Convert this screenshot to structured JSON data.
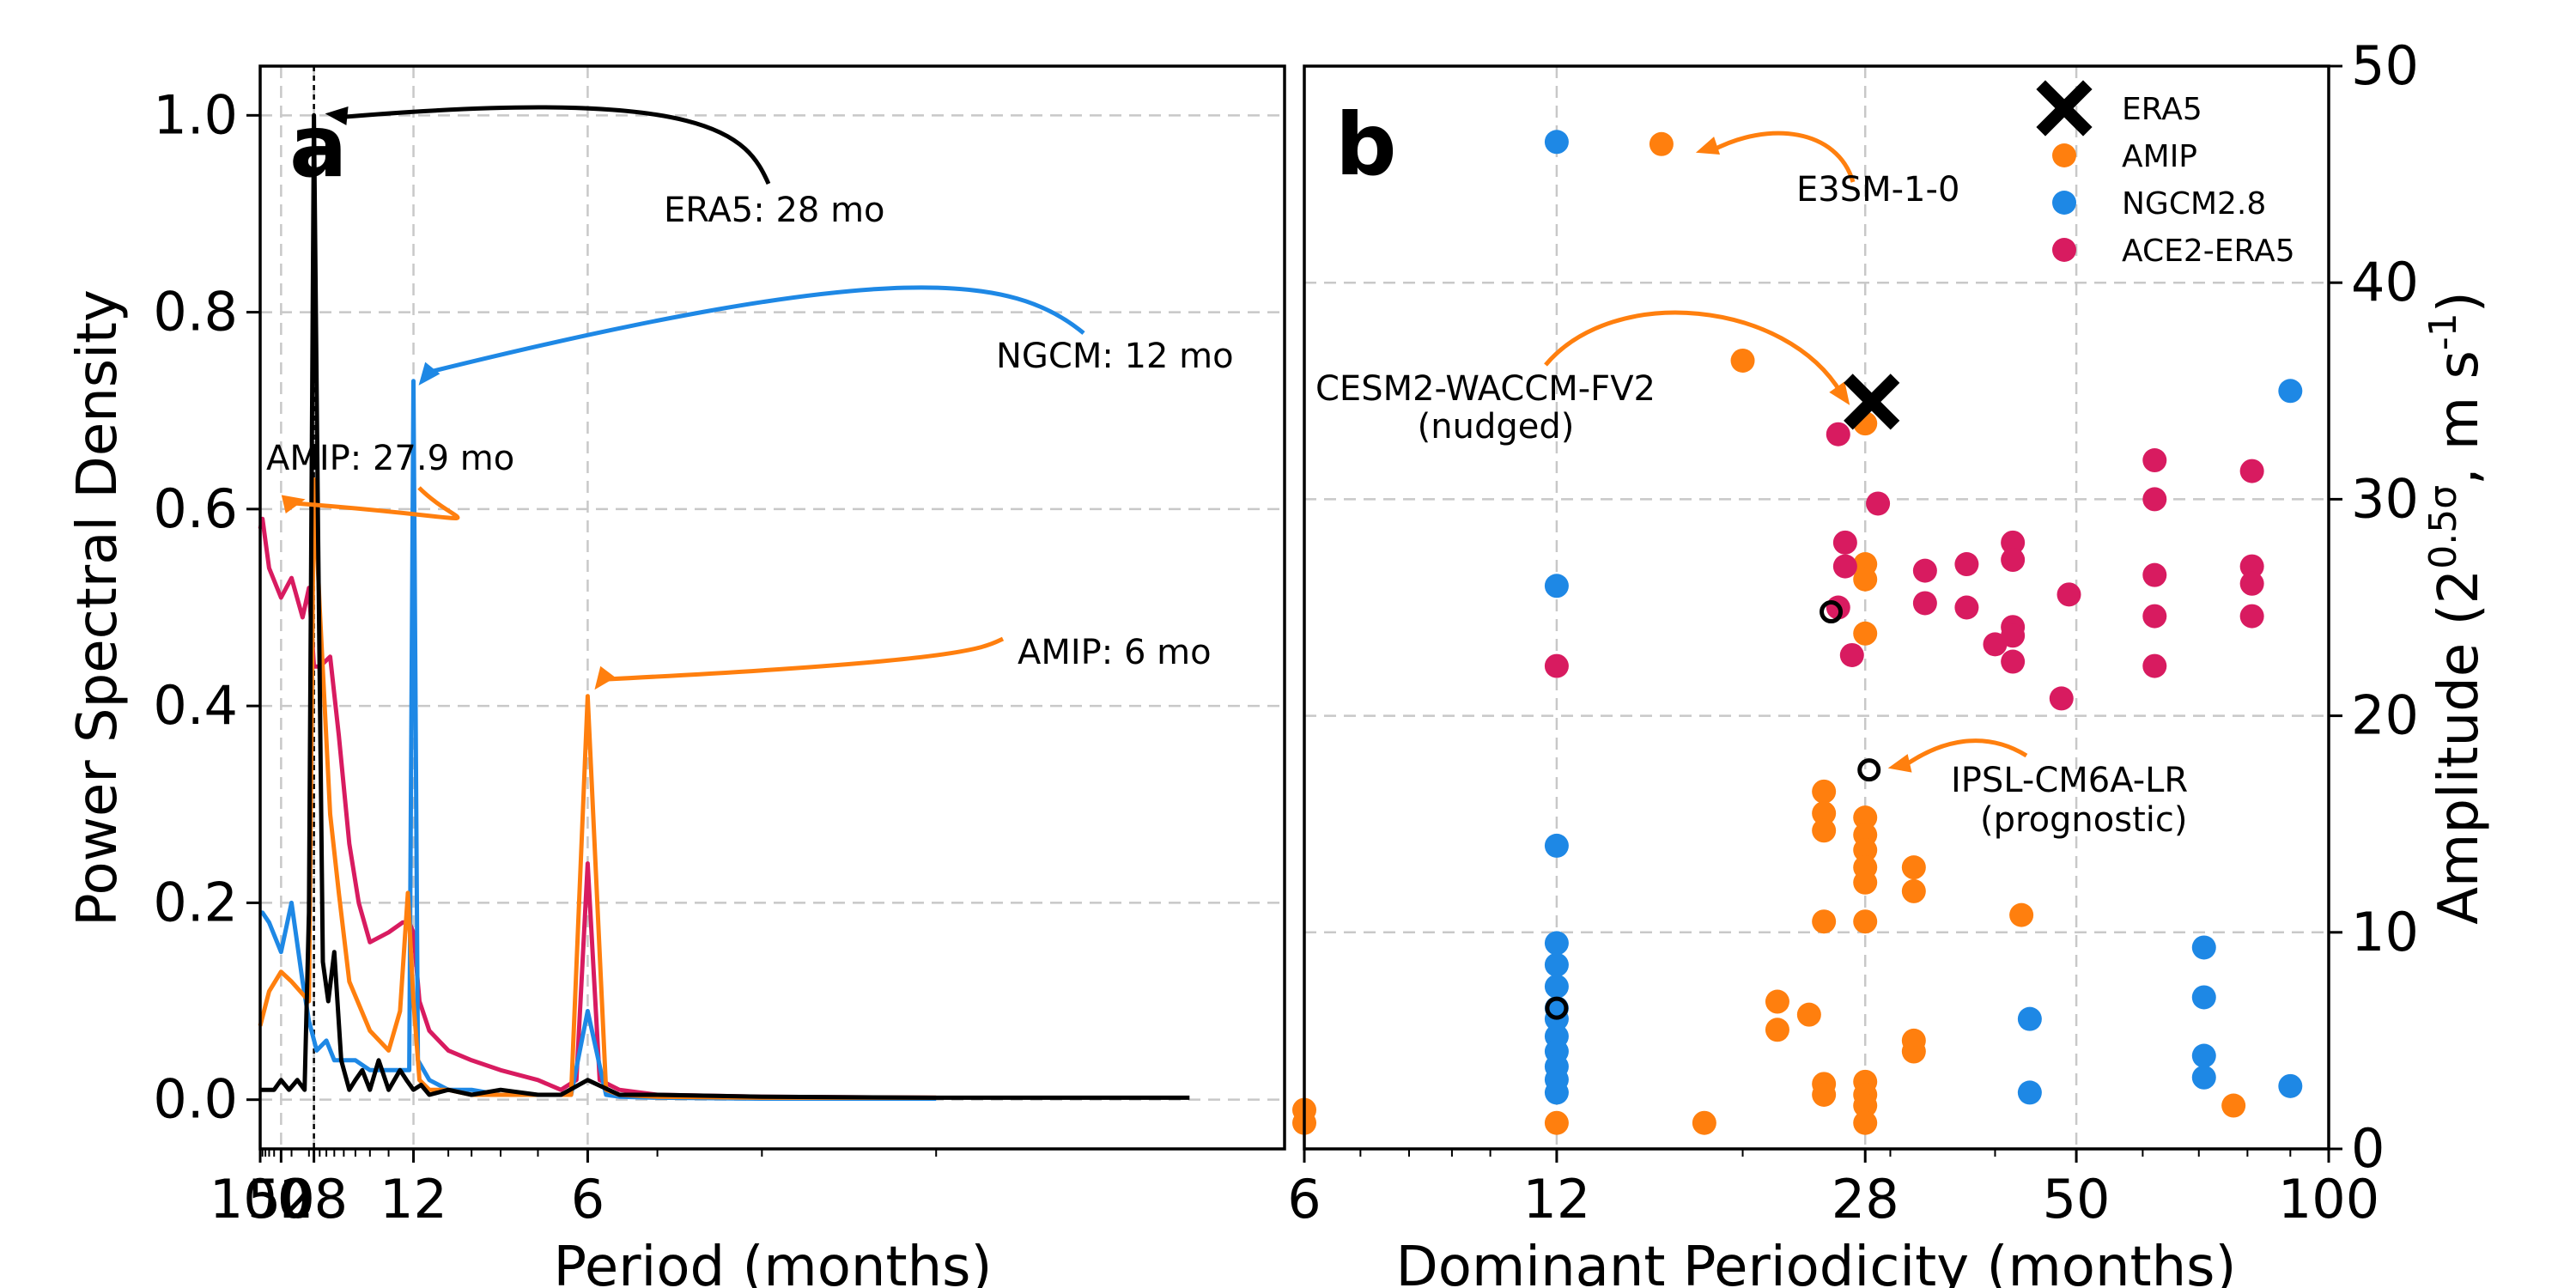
{
  "colors": {
    "era5": "#000000",
    "amip": "#ff7f0e",
    "ngcm": "#1e88e5",
    "ace2": "#d81b60",
    "grid": "#c8c8c8"
  },
  "chart_data": [
    {
      "panel": "a",
      "type": "line",
      "xlabel": "Period (months)",
      "ylabel": "Power Spectral Density",
      "x_scale": "reciprocal (frequency)",
      "xlim": [
        100,
        2
      ],
      "ylim": [
        -0.05,
        1.05
      ],
      "xticks": [
        100,
        50,
        28,
        12,
        6
      ],
      "xtick_labels": [
        "100",
        "50",
        "28",
        "12",
        "6"
      ],
      "yticks": [
        0.0,
        0.2,
        0.4,
        0.6,
        0.8,
        1.0
      ],
      "ytick_labels": [
        "0.0",
        "0.2",
        "0.4",
        "0.6",
        "0.8",
        "1.0"
      ],
      "grid": true,
      "reference_line_x": 28,
      "series": [
        {
          "key": "ace2",
          "x": [
            100,
            90,
            70,
            50,
            40,
            33,
            30,
            28,
            26,
            23,
            21,
            19,
            17.5,
            16,
            14,
            12.8,
            12.3,
            12,
            11.6,
            11,
            10,
            9,
            8,
            7,
            6.5,
            6.2,
            6,
            5.8,
            5.5,
            5,
            4,
            3
          ],
          "y": [
            0.58,
            0.59,
            0.54,
            0.51,
            0.53,
            0.49,
            0.52,
            0.44,
            0.44,
            0.45,
            0.37,
            0.26,
            0.2,
            0.16,
            0.17,
            0.18,
            0.18,
            0.17,
            0.1,
            0.07,
            0.05,
            0.04,
            0.03,
            0.02,
            0.01,
            0.02,
            0.24,
            0.02,
            0.01,
            0.005,
            0.003,
            0.002
          ]
        },
        {
          "key": "ngcm",
          "x": [
            100,
            90,
            70,
            50,
            40,
            33,
            30,
            27,
            24,
            22,
            20,
            18,
            16,
            14,
            12.8,
            12.3,
            12,
            11.7,
            11,
            10,
            9,
            8,
            7,
            6.3,
            6,
            5.7,
            5.5,
            5,
            4,
            3
          ],
          "y": [
            0.19,
            0.19,
            0.18,
            0.15,
            0.2,
            0.12,
            0.08,
            0.05,
            0.06,
            0.04,
            0.04,
            0.04,
            0.03,
            0.03,
            0.03,
            0.03,
            0.73,
            0.04,
            0.02,
            0.01,
            0.01,
            0.005,
            0.005,
            0.005,
            0.09,
            0.005,
            0.003,
            0.002,
            0.001,
            0.001
          ]
        },
        {
          "key": "amip",
          "x": [
            100,
            70,
            50,
            40,
            30,
            28,
            26,
            23,
            21,
            19,
            16,
            14,
            13,
            12.4,
            12,
            11.6,
            11,
            10,
            9,
            8,
            7,
            6.3,
            6,
            5.7,
            5.5,
            5,
            4,
            3
          ],
          "y": [
            0.075,
            0.11,
            0.13,
            0.12,
            0.1,
            0.63,
            0.5,
            0.29,
            0.21,
            0.12,
            0.07,
            0.05,
            0.09,
            0.21,
            0.1,
            0.02,
            0.01,
            0.01,
            0.005,
            0.005,
            0.005,
            0.005,
            0.41,
            0.01,
            0.005,
            0.003,
            0.002,
            0.002
          ]
        },
        {
          "key": "era5",
          "x": [
            100,
            80,
            60,
            50,
            42,
            36,
            32,
            30,
            28,
            26.5,
            25,
            23.5,
            22,
            20.5,
            19,
            18,
            17,
            16,
            15,
            14,
            13,
            12.5,
            12,
            11.5,
            11,
            10,
            9,
            8,
            7,
            6.5,
            6,
            5.5,
            5,
            4,
            3,
            2.2
          ],
          "y": [
            0.01,
            0.01,
            0.01,
            0.02,
            0.01,
            0.02,
            0.01,
            0.19,
            1.0,
            0.57,
            0.14,
            0.1,
            0.15,
            0.04,
            0.01,
            0.02,
            0.03,
            0.01,
            0.04,
            0.01,
            0.03,
            0.02,
            0.01,
            0.015,
            0.005,
            0.01,
            0.005,
            0.01,
            0.005,
            0.005,
            0.02,
            0.005,
            0.005,
            0.003,
            0.002,
            0.002
          ]
        }
      ],
      "annotations": [
        {
          "key": "ann_era5",
          "text": "ERA5: 28 mo",
          "x": 28,
          "y": 1.0,
          "color_key": "era5"
        },
        {
          "key": "ann_ngcm",
          "text": "NGCM: 12 mo",
          "x": 12,
          "y": 0.73,
          "color_key": "ngcm"
        },
        {
          "key": "ann_amip28",
          "text": "AMIP: 27.9 mo",
          "x": 28,
          "y": 0.61,
          "color_key": "amip"
        },
        {
          "key": "ann_amip6",
          "text": "AMIP: 6 mo",
          "x": 6,
          "y": 0.42,
          "color_key": "amip"
        }
      ]
    },
    {
      "panel": "b",
      "type": "scatter",
      "xlabel": "Dominant Periodicity (months)",
      "ylabel": "Amplitude (2^{0.5σ}, m s^{-1})",
      "x_scale": "log",
      "xlim": [
        6,
        100
      ],
      "ylim": [
        0,
        50
      ],
      "y_axis_side": "right",
      "xticks": [
        6,
        12,
        28,
        50,
        100
      ],
      "xtick_labels": [
        "6",
        "12",
        "28",
        "50",
        "100"
      ],
      "yticks": [
        0,
        10,
        20,
        30,
        40,
        50
      ],
      "ytick_labels": [
        "0",
        "10",
        "20",
        "30",
        "40",
        "50"
      ],
      "grid": true,
      "legend_position": "top-right",
      "legend": [
        {
          "key": "era5",
          "label": "ERA5",
          "marker": "x"
        },
        {
          "key": "amip",
          "label": "AMIP",
          "marker": "o"
        },
        {
          "key": "ngcm",
          "label": "NGCM2.8",
          "marker": "o"
        },
        {
          "key": "ace2",
          "label": "ACE2-ERA5",
          "marker": "o"
        }
      ],
      "series": [
        {
          "key": "ngcm",
          "points": [
            [
              12,
              46.5
            ],
            [
              12,
              26
            ],
            [
              12,
              14
            ],
            [
              12,
              9.5
            ],
            [
              12,
              8.5
            ],
            [
              12,
              7.5
            ],
            [
              12,
              6.5
            ],
            [
              12,
              6
            ],
            [
              12,
              5.2
            ],
            [
              12,
              4.5
            ],
            [
              12,
              3.8
            ],
            [
              12,
              3.2
            ],
            [
              12,
              2.6
            ],
            [
              44,
              6
            ],
            [
              44,
              2.6
            ],
            [
              71,
              9.3
            ],
            [
              71,
              7
            ],
            [
              71,
              4.3
            ],
            [
              71,
              3.3
            ],
            [
              90,
              35
            ],
            [
              90,
              2.9
            ]
          ]
        },
        {
          "key": "amip",
          "points": [
            [
              6,
              1.8
            ],
            [
              6,
              1.2
            ],
            [
              12,
              1.2
            ],
            [
              16,
              46.4
            ],
            [
              18,
              1.2
            ],
            [
              20,
              36.4
            ],
            [
              22,
              6.8
            ],
            [
              22,
              5.5
            ],
            [
              24,
              6.2
            ],
            [
              25,
              16.5
            ],
            [
              25,
              15.5
            ],
            [
              25,
              14.7
            ],
            [
              25,
              10.5
            ],
            [
              25,
              3
            ],
            [
              25,
              2.5
            ],
            [
              28,
              33.5
            ],
            [
              28,
              27
            ],
            [
              28,
              26.3
            ],
            [
              28,
              23.8
            ],
            [
              28,
              15.3
            ],
            [
              28,
              14.5
            ],
            [
              28,
              13.8
            ],
            [
              28,
              13
            ],
            [
              28,
              12.3
            ],
            [
              28,
              10.5
            ],
            [
              28,
              3.1
            ],
            [
              28,
              2.5
            ],
            [
              28,
              2
            ],
            [
              28,
              1.2
            ],
            [
              32,
              13
            ],
            [
              32,
              11.9
            ],
            [
              32,
              5
            ],
            [
              32,
              4.5
            ],
            [
              43,
              10.8
            ],
            [
              77,
              2
            ]
          ]
        },
        {
          "key": "ace2",
          "points": [
            [
              12,
              22.3
            ],
            [
              26,
              33
            ],
            [
              26,
              25
            ],
            [
              27,
              22.8
            ],
            [
              29,
              29.8
            ],
            [
              26.5,
              28
            ],
            [
              26.5,
              26.9
            ],
            [
              33,
              26.7
            ],
            [
              33,
              25.2
            ],
            [
              37,
              27
            ],
            [
              37,
              25
            ],
            [
              40,
              23.3
            ],
            [
              42,
              28
            ],
            [
              42,
              27.2
            ],
            [
              42,
              24.1
            ],
            [
              42,
              23.7
            ],
            [
              42,
              22.5
            ],
            [
              48,
              20.8
            ],
            [
              49,
              25.6
            ],
            [
              62,
              31.8
            ],
            [
              62,
              30
            ],
            [
              62,
              26.5
            ],
            [
              62,
              24.6
            ],
            [
              62,
              22.3
            ],
            [
              81,
              31.3
            ],
            [
              81,
              26.9
            ],
            [
              81,
              26.1
            ],
            [
              81,
              24.6
            ]
          ]
        },
        {
          "key": "era5",
          "points": [
            [
              28.5,
              34.5
            ]
          ]
        }
      ],
      "highlighted_points": [
        [
          12,
          6.5
        ],
        [
          25.5,
          24.8
        ],
        [
          28.3,
          17.5
        ]
      ],
      "annotations": [
        {
          "key": "ann_e3sm",
          "text": "E3SM-1-0",
          "x": 16,
          "y": 46.4,
          "color_key": "amip"
        },
        {
          "key": "ann_cesm",
          "lines": [
            "CESM2-WACCM-FV2",
            "(nudged)"
          ],
          "x": 28,
          "y": 34.5,
          "color_key": "amip"
        },
        {
          "key": "ann_ipsl",
          "lines": [
            "IPSL-CM6A-LR",
            "(prognostic)"
          ],
          "x": 28.3,
          "y": 17.5,
          "color_key": "amip"
        }
      ]
    }
  ]
}
